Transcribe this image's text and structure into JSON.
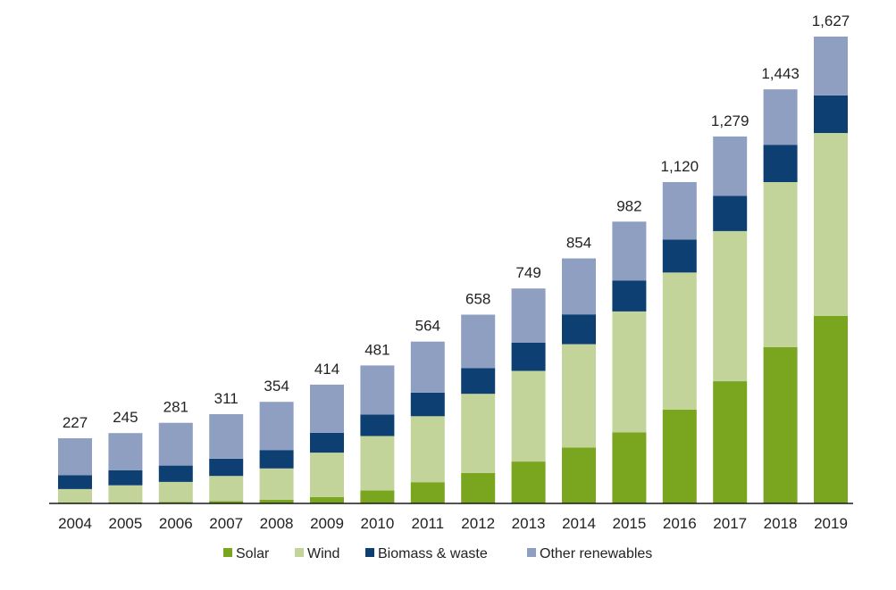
{
  "chart_data": {
    "type": "bar",
    "stacked": true,
    "title": "",
    "xlabel": "",
    "ylabel": "",
    "categories": [
      "2004",
      "2005",
      "2006",
      "2007",
      "2008",
      "2009",
      "2010",
      "2011",
      "2012",
      "2013",
      "2014",
      "2015",
      "2016",
      "2017",
      "2018",
      "2019"
    ],
    "totals": [
      "227",
      "245",
      "281",
      "311",
      "354",
      "414",
      "481",
      "564",
      "658",
      "749",
      "854",
      "982",
      "1,120",
      "1,279",
      "1,443",
      "1,627"
    ],
    "total_values": [
      227,
      245,
      281,
      311,
      354,
      414,
      481,
      564,
      658,
      749,
      854,
      982,
      1120,
      1279,
      1443,
      1627
    ],
    "series": [
      {
        "name": "Solar",
        "color": "#7aa51e",
        "values": [
          3,
          4,
          5,
          8,
          13,
          22,
          45,
          74,
          106,
          146,
          195,
          248,
          327,
          426,
          545,
          654
        ]
      },
      {
        "name": "Wind",
        "color": "#c3d49a",
        "values": [
          47,
          59,
          70,
          88,
          109,
          155,
          190,
          230,
          276,
          316,
          360,
          421,
          478,
          523,
          575,
          637
        ]
      },
      {
        "name": "Biomass & waste",
        "color": "#0e3f73",
        "values": [
          48,
          52,
          57,
          60,
          64,
          69,
          75,
          82,
          90,
          98,
          104,
          108,
          115,
          123,
          130,
          131
        ]
      },
      {
        "name": "Other renewables",
        "color": "#8f9fc2",
        "values": [
          129,
          130,
          149,
          155,
          168,
          168,
          171,
          178,
          186,
          189,
          195,
          205,
          200,
          207,
          193,
          205
        ]
      }
    ],
    "ylim": [
      0,
      1640
    ],
    "grid": false,
    "legend_position": "bottom"
  }
}
